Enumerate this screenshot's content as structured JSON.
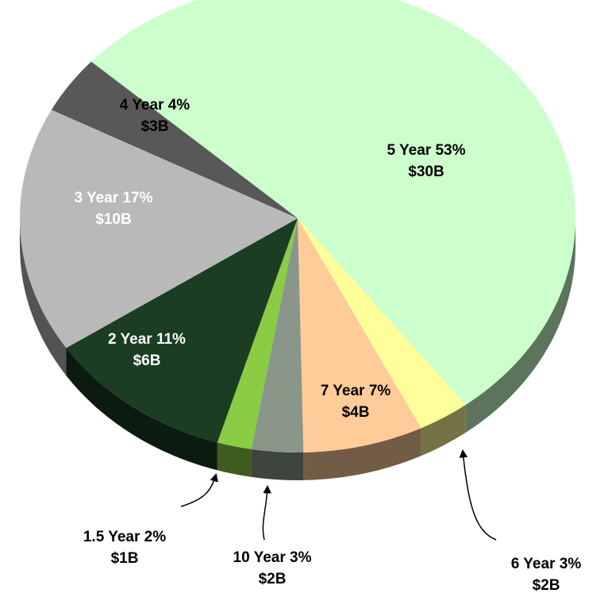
{
  "chart_data": {
    "type": "pie",
    "categories": [
      "5 Year",
      "6 Year",
      "7 Year",
      "10 Year",
      "1.5 Year",
      "2 Year",
      "3 Year",
      "4 Year"
    ],
    "values": [
      53,
      3,
      7,
      3,
      2,
      11,
      17,
      4
    ],
    "value_labels": [
      "53%",
      "3%",
      "7%",
      "3%",
      "2%",
      "11%",
      "17%",
      "4%"
    ],
    "amount_labels": [
      "$30B",
      "$2B",
      "$4B",
      "$2B",
      "$1B",
      "$6B",
      "$10B",
      "$3B"
    ],
    "colors": [
      "#ccffcc",
      "#ffff99",
      "#ffcc99",
      "#8a968a",
      "#8acc44",
      "#1b3d22",
      "#b9b9b9",
      "#585858"
    ]
  }
}
